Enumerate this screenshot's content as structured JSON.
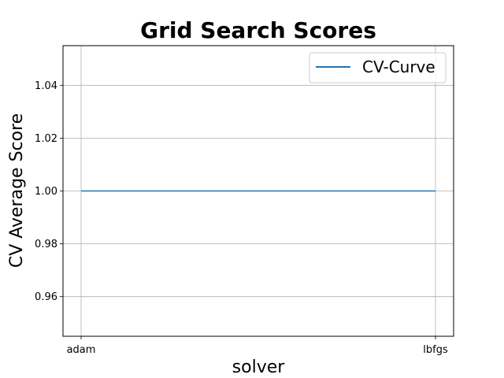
{
  "chart_data": {
    "type": "line",
    "title": "Grid Search Scores",
    "xlabel": "solver",
    "ylabel": "CV Average Score",
    "categories": [
      "adam",
      "lbfgs"
    ],
    "series": [
      {
        "name": "CV-Curve",
        "values": [
          1.0,
          1.0
        ],
        "color": "#1f77b4"
      }
    ],
    "ylim": [
      0.945,
      1.055
    ],
    "yticks": [
      0.96,
      0.98,
      1.0,
      1.02,
      1.04
    ],
    "ytick_labels": [
      "0.96",
      "0.98",
      "1.00",
      "1.02",
      "1.04"
    ],
    "grid": true,
    "legend_position": "top-right"
  }
}
